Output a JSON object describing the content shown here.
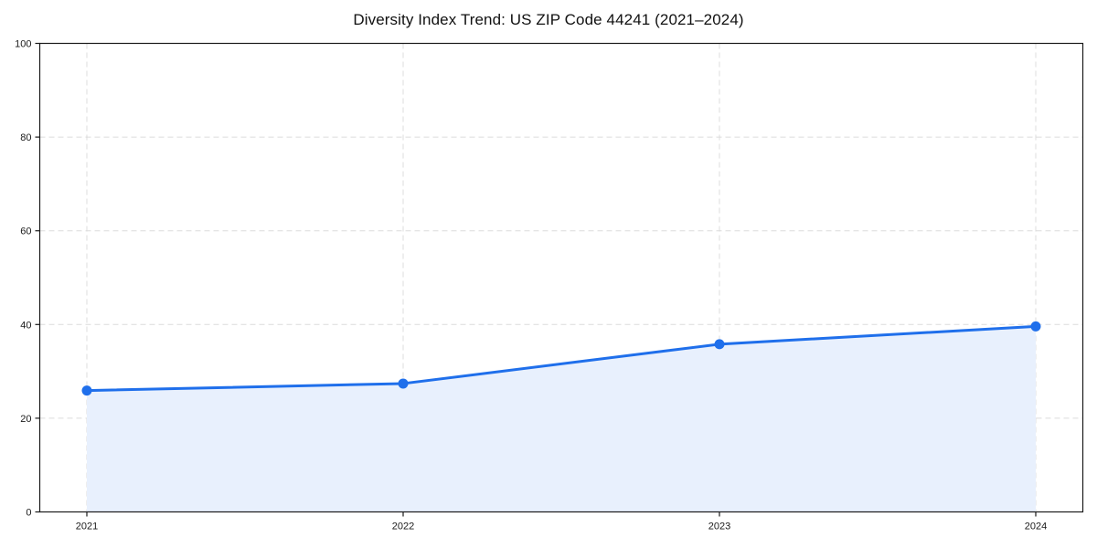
{
  "chart_data": {
    "type": "area",
    "title": "Diversity Index Trend: US ZIP Code 44241 (2021–2024)",
    "categories": [
      "2021",
      "2022",
      "2023",
      "2024"
    ],
    "series": [
      {
        "name": "Diversity Index",
        "values": [
          25.9,
          27.4,
          35.8,
          39.6
        ]
      }
    ],
    "xlabel": "",
    "ylabel": "",
    "ylim": [
      0,
      100
    ],
    "yticks": [
      0,
      20,
      40,
      60,
      80,
      100
    ],
    "grid": "dashed, horizontal and vertical",
    "legend": "none",
    "colors": {
      "line": "#1f6feb",
      "marker": "#1f6feb",
      "fill": "#e8f0fd",
      "grid": "#dcdcdc",
      "axis": "#1a1a1a",
      "background": "#ffffff"
    }
  }
}
